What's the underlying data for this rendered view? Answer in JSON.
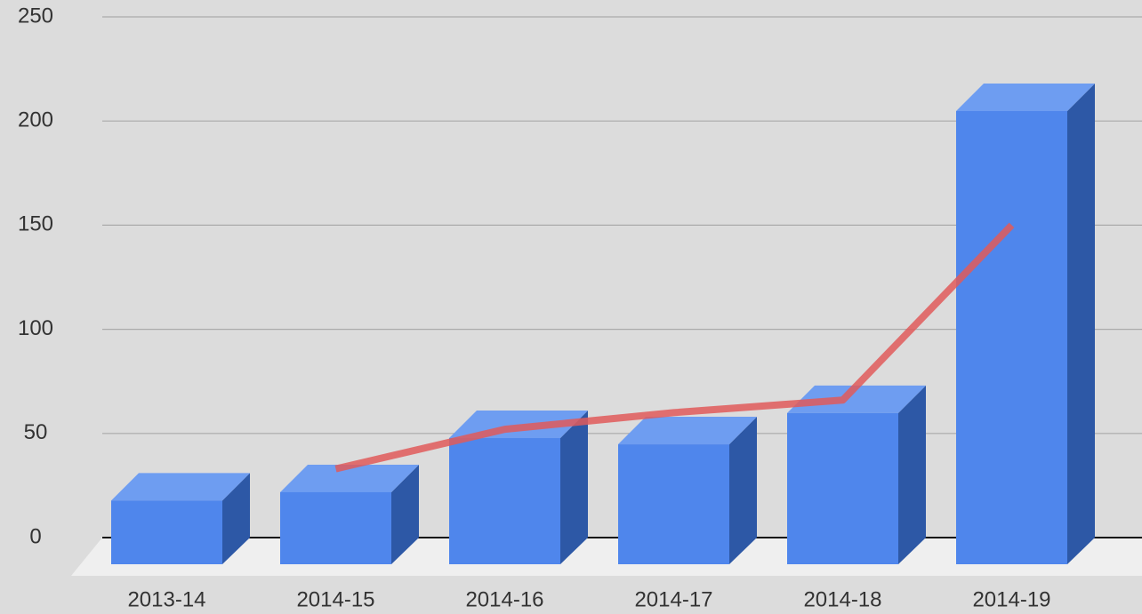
{
  "chart_data": {
    "type": "bar",
    "categories": [
      "2013-14",
      "2014-15",
      "2014-16",
      "2014-17",
      "2014-18",
      "2014-19"
    ],
    "series": [
      {
        "color": "#4f86ec",
        "values": [
          31,
          35,
          61,
          58,
          73,
          218
        ]
      },
      {
        "type": "line",
        "color": "#e05a5a",
        "values": [
          null,
          33,
          52,
          60,
          66,
          150
        ]
      }
    ],
    "ylim": [
      0,
      250
    ],
    "yticks": [
      0,
      50,
      100,
      150,
      200,
      250
    ],
    "grid": true
  }
}
